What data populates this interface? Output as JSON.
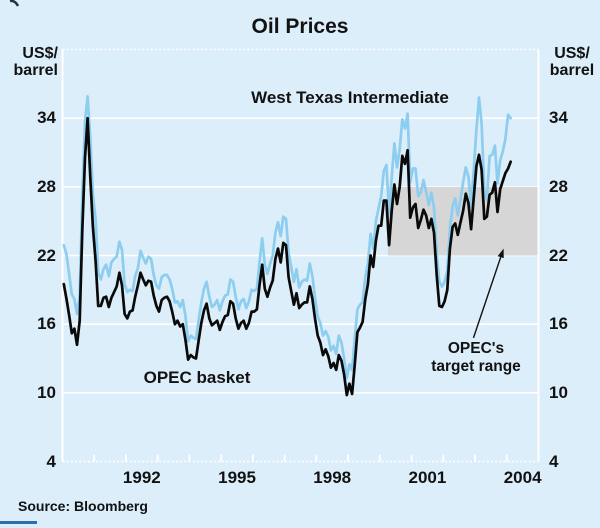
{
  "title": "Oil Prices",
  "axis_unit": {
    "line1": "US$/",
    "line2": "barrel"
  },
  "source": "Source: Bloomberg",
  "colors": {
    "background": "#dceefa",
    "wti_line": "#8dcdef",
    "opec_line": "#0a0a0a",
    "band_fill": "#d6d6d6",
    "grid": "#ffffff",
    "text": "#121212",
    "footer_rule": "#2f6fa8",
    "arrow": "#111111"
  },
  "annotations": {
    "wti_label": "West Texas Intermediate",
    "opec_label": "OPEC basket",
    "target_label_line1": "OPEC's",
    "target_label_line2": "target range"
  },
  "chart_data": {
    "type": "line",
    "title": "Oil Prices",
    "ylabel": "US$/barrel",
    "xlabel": "",
    "xlim": [
      1990,
      2005
    ],
    "ylim": [
      4,
      40
    ],
    "grid": "horizontal-white-on-tinted-panel",
    "yticks": [
      34,
      28,
      22,
      16,
      10,
      4
    ],
    "gridlines_at": [
      10,
      16,
      22,
      28,
      34
    ],
    "year_ticks": [
      1991,
      1992,
      1993,
      1994,
      1995,
      1996,
      1997,
      1998,
      1999,
      2000,
      2001,
      2002,
      2003,
      2004
    ],
    "xtick_labels": [
      "1992",
      "1995",
      "1998",
      "2001",
      "2004"
    ],
    "xtick_label_positions": [
      1992.5,
      1995.5,
      1998.5,
      2001.5,
      2004.5
    ],
    "x_start_year": 1990,
    "x_step_months": 1,
    "band": {
      "label": "OPEC's target range",
      "y_from": 22,
      "y_to": 28,
      "x_from": 2000.25,
      "x_to": 2005
    },
    "annotation_arrow": {
      "from_x": 2002.95,
      "from_y": 14.8,
      "to_x": 2003.9,
      "to_y": 22.6
    },
    "series": [
      {
        "name": "West Texas Intermediate",
        "color": "#8dcdef",
        "values": [
          22.9,
          22.1,
          20.4,
          18.6,
          18.2,
          16.9,
          18.5,
          27.2,
          33.7,
          35.9,
          32.3,
          27.3,
          25.2,
          20.5,
          19.9,
          20.8,
          21.2,
          20.2,
          21.4,
          21.7,
          21.9,
          23.2,
          22.5,
          19.5,
          18.8,
          19.0,
          18.9,
          20.2,
          20.9,
          22.4,
          21.8,
          21.3,
          21.9,
          21.7,
          20.3,
          19.4,
          19.1,
          20.1,
          20.3,
          20.3,
          19.9,
          19.1,
          17.9,
          18.0,
          17.5,
          18.1,
          16.7,
          14.5,
          15.0,
          14.8,
          14.7,
          16.4,
          17.9,
          19.1,
          19.7,
          18.4,
          17.5,
          17.7,
          18.1,
          17.2,
          18.0,
          18.5,
          18.6,
          19.9,
          19.7,
          18.4,
          17.3,
          18.0,
          18.2,
          17.4,
          18.0,
          19.0,
          18.9,
          19.1,
          21.4,
          23.5,
          21.2,
          20.4,
          21.3,
          22.0,
          24.0,
          24.9,
          23.7,
          25.4,
          25.2,
          22.2,
          21.0,
          19.7,
          20.8,
          19.2,
          19.7,
          19.9,
          19.8,
          21.3,
          20.2,
          18.3,
          16.7,
          16.1,
          15.0,
          15.4,
          14.9,
          13.7,
          14.1,
          13.4,
          15.0,
          14.4,
          13.0,
          11.3,
          12.5,
          12.0,
          14.7,
          17.3,
          17.7,
          17.9,
          20.1,
          21.3,
          23.9,
          22.6,
          25.0,
          26.1,
          27.2,
          29.4,
          29.9,
          25.7,
          28.8,
          31.8,
          29.7,
          31.3,
          33.9,
          33.1,
          34.4,
          28.4,
          29.6,
          29.6,
          27.2,
          27.5,
          28.6,
          27.6,
          26.4,
          27.5,
          26.2,
          22.2,
          19.7,
          19.3,
          19.7,
          20.7,
          24.4,
          26.3,
          27.0,
          25.5,
          26.9,
          28.4,
          29.7,
          28.9,
          26.3,
          29.4,
          33.0,
          35.8,
          33.5,
          27.8,
          26.9,
          30.7,
          30.8,
          31.6,
          28.3,
          30.3,
          31.1,
          32.2,
          34.3,
          34.0
        ]
      },
      {
        "name": "OPEC basket",
        "color": "#0a0a0a",
        "values": [
          19.5,
          18.2,
          16.8,
          15.2,
          15.6,
          14.2,
          16.3,
          24.2,
          30.5,
          34.0,
          28.8,
          24.5,
          21.5,
          17.6,
          17.6,
          18.3,
          18.4,
          17.5,
          18.3,
          18.8,
          19.3,
          20.5,
          19.4,
          16.9,
          16.5,
          17.1,
          17.2,
          18.4,
          19.4,
          20.5,
          19.9,
          19.4,
          19.8,
          19.7,
          18.5,
          17.6,
          17.1,
          18.1,
          18.3,
          18.4,
          18.0,
          17.1,
          16.0,
          16.3,
          15.8,
          16.0,
          14.6,
          12.9,
          13.3,
          13.1,
          13.0,
          14.6,
          16.1,
          17.2,
          17.8,
          16.5,
          15.9,
          16.1,
          16.3,
          15.5,
          16.2,
          16.7,
          16.8,
          18.0,
          17.8,
          16.5,
          15.6,
          16.1,
          16.3,
          15.6,
          16.1,
          17.1,
          17.1,
          17.3,
          19.4,
          21.2,
          19.1,
          18.4,
          19.2,
          19.8,
          21.7,
          22.6,
          21.4,
          23.1,
          22.9,
          20.1,
          18.9,
          17.7,
          18.7,
          17.4,
          17.7,
          17.9,
          17.9,
          19.3,
          18.2,
          16.5,
          15.0,
          14.4,
          13.3,
          13.8,
          13.2,
          12.2,
          12.6,
          12.0,
          13.3,
          12.8,
          11.6,
          9.8,
          10.8,
          9.9,
          12.4,
          15.3,
          15.7,
          16.2,
          18.2,
          19.5,
          22.0,
          21.0,
          23.3,
          24.6,
          24.6,
          26.8,
          26.8,
          22.9,
          25.9,
          28.2,
          26.5,
          28.0,
          30.7,
          30.0,
          31.2,
          25.3,
          26.2,
          26.5,
          24.4,
          25.1,
          26.0,
          25.5,
          24.4,
          25.2,
          24.0,
          20.3,
          17.6,
          17.5,
          18.0,
          19.0,
          22.6,
          24.5,
          24.8,
          23.8,
          24.9,
          25.9,
          27.4,
          26.6,
          24.3,
          27.0,
          29.8,
          30.8,
          29.5,
          25.2,
          25.4,
          27.3,
          27.5,
          28.4,
          25.8,
          27.8,
          28.5,
          29.2,
          29.6,
          30.2
        ]
      }
    ]
  }
}
